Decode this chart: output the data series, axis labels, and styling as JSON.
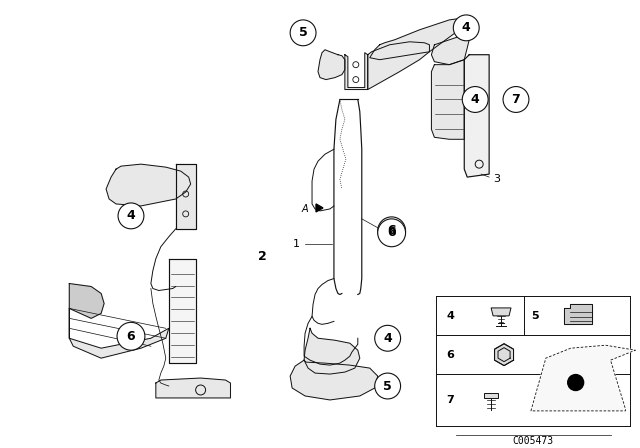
{
  "bg_color": "#ffffff",
  "fig_width": 6.4,
  "fig_height": 4.48,
  "dpi": 100,
  "diagram_code": "C005473",
  "line_color": "#111111",
  "line_width": 0.7
}
